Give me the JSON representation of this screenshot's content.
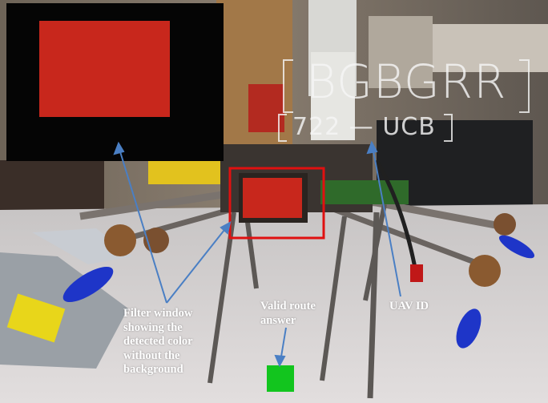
{
  "hud": {
    "color_code": "BGBGRR",
    "uav_id": "722 — UCB"
  },
  "annotations": {
    "filter_window_lines": [
      "Filter window",
      "showing the",
      "detected color",
      "without the",
      "background"
    ],
    "valid_route_lines": [
      "Valid route",
      "answer"
    ],
    "uav_id_label": "UAV ID"
  },
  "colors": {
    "detected_color": "#c8271c",
    "bounding_box": "#e01010",
    "valid_route_indicator": "#12c51e",
    "arrow": "#4a7fc4"
  }
}
